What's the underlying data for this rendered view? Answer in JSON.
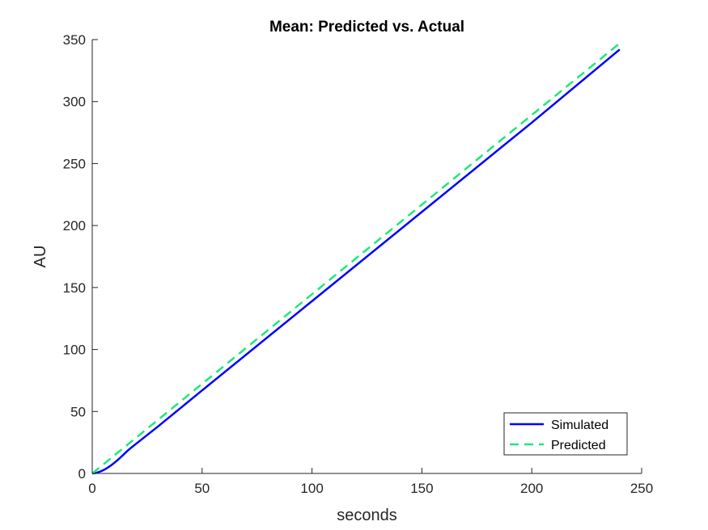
{
  "chart_data": {
    "type": "line",
    "title": "Mean: Predicted vs. Actual",
    "xlabel": "seconds",
    "ylabel": "AU",
    "xlim": [
      0,
      250
    ],
    "ylim": [
      0,
      350
    ],
    "xticks": [
      "0",
      "50",
      "100",
      "150",
      "200",
      "250"
    ],
    "yticks": [
      "0",
      "50",
      "100",
      "150",
      "200",
      "250",
      "300",
      "350"
    ],
    "grid": false,
    "legend_position": "bottom-right",
    "series": [
      {
        "name": "Simulated",
        "color": "#0000ff",
        "style": "solid",
        "x": [
          0,
          2,
          4,
          6,
          8,
          10,
          12,
          14,
          16,
          18,
          20,
          30,
          50,
          100,
          150,
          200,
          240
        ],
        "y": [
          0,
          0.5,
          1.8,
          3.5,
          5.8,
          8.5,
          11.5,
          14.8,
          18.2,
          21.2,
          24,
          38,
          67,
          139,
          211,
          283,
          342
        ]
      },
      {
        "name": "Predicted",
        "color": "#1ee87a",
        "style": "dashed",
        "x": [
          0,
          240
        ],
        "y": [
          0,
          347
        ]
      }
    ]
  }
}
